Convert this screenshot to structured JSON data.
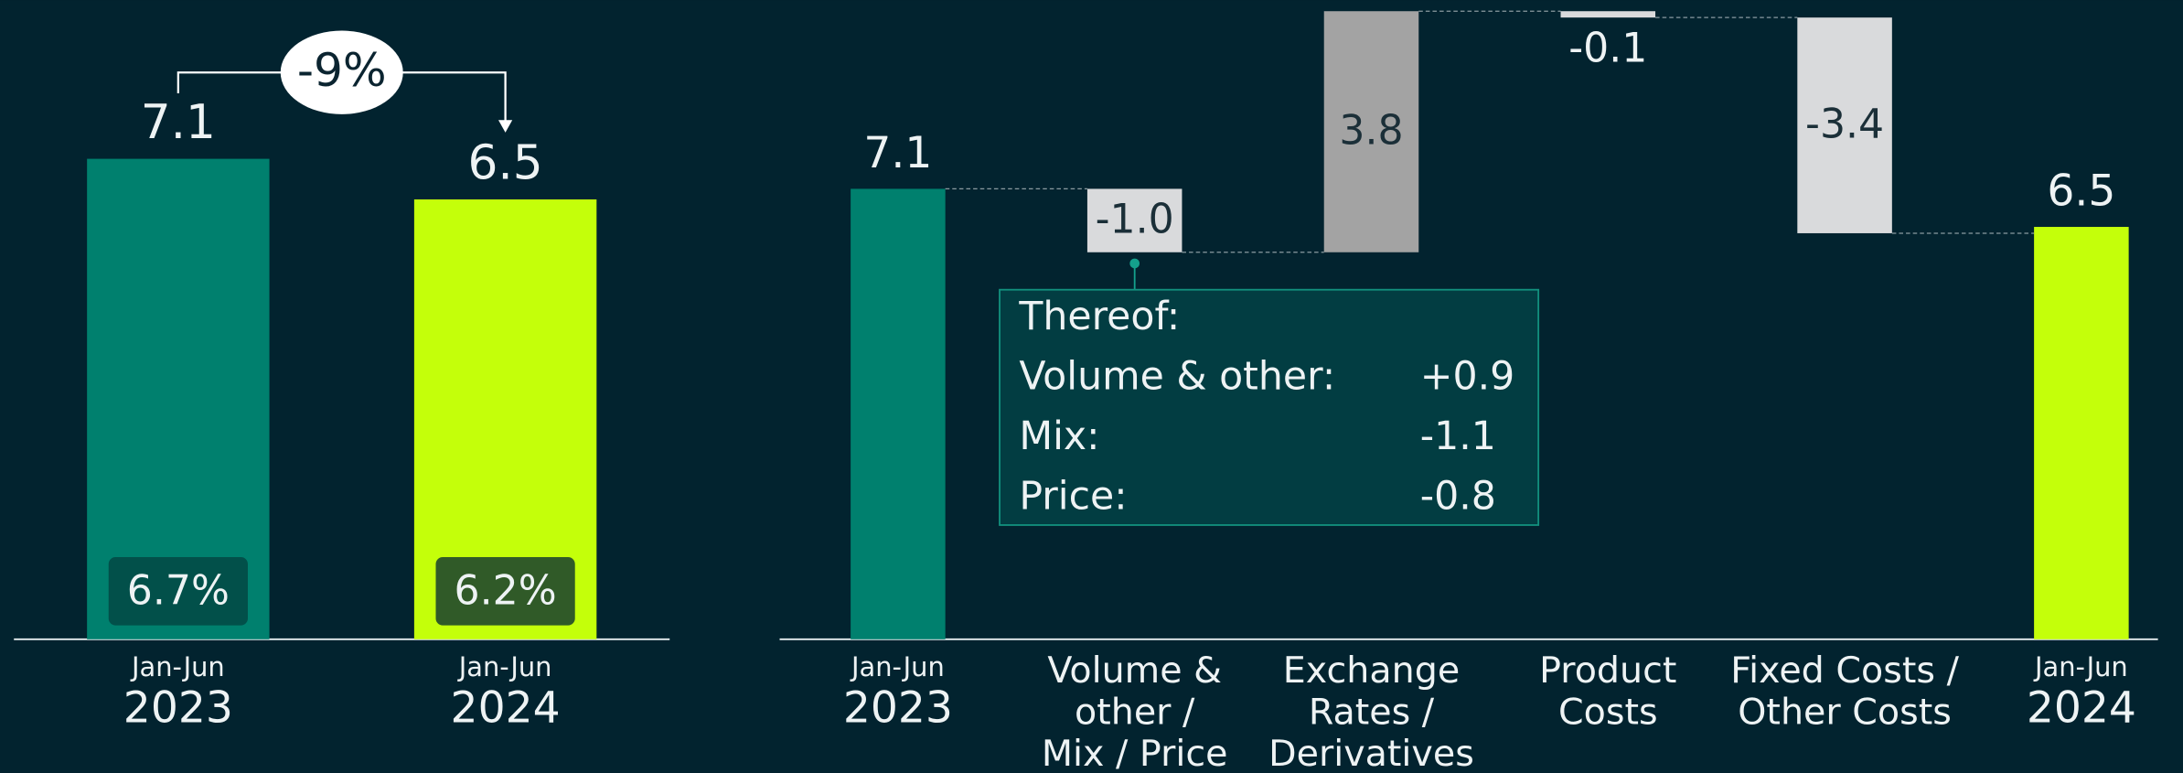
{
  "chart_data": [
    {
      "type": "bar",
      "categories": [
        [
          "Jan-Jun",
          "2023"
        ],
        [
          "Jan-Jun",
          "2024"
        ]
      ],
      "values": [
        7.1,
        6.5
      ],
      "colors": [
        "#00806e",
        "#c4ff0a"
      ],
      "inner_labels": [
        "6.7%",
        "6.2%"
      ],
      "change_label": "-9%"
    },
    {
      "type": "waterfall",
      "categories": [
        [
          "Jan-Jun",
          "2023"
        ],
        [
          "Volume &",
          "other /",
          "Mix / Price"
        ],
        [
          "Exchange",
          "Rates /",
          "Derivatives"
        ],
        [
          "Product",
          "Costs"
        ],
        [
          "Fixed Costs /",
          "Other Costs"
        ],
        [
          "Jan-Jun",
          "2024"
        ]
      ],
      "values": [
        7.1,
        -1.0,
        3.8,
        -0.1,
        -3.4,
        6.5
      ],
      "value_labels": [
        "7.1",
        "-1.0",
        "3.8",
        "-0.1",
        "-3.4",
        "6.5"
      ],
      "totals": [
        true,
        false,
        false,
        false,
        false,
        true
      ],
      "colors": [
        "#00806e",
        "#d9dadc",
        "#a3a3a3",
        "#d9dadc",
        "#d9dadc",
        "#c4ff0a"
      ],
      "callout": {
        "title": "Thereof:",
        "rows": [
          {
            "label": "Volume & other:",
            "value": "+0.9"
          },
          {
            "label": "Mix:",
            "value": "-1.1"
          },
          {
            "label": "Price:",
            "value": "-0.8"
          }
        ]
      }
    }
  ]
}
